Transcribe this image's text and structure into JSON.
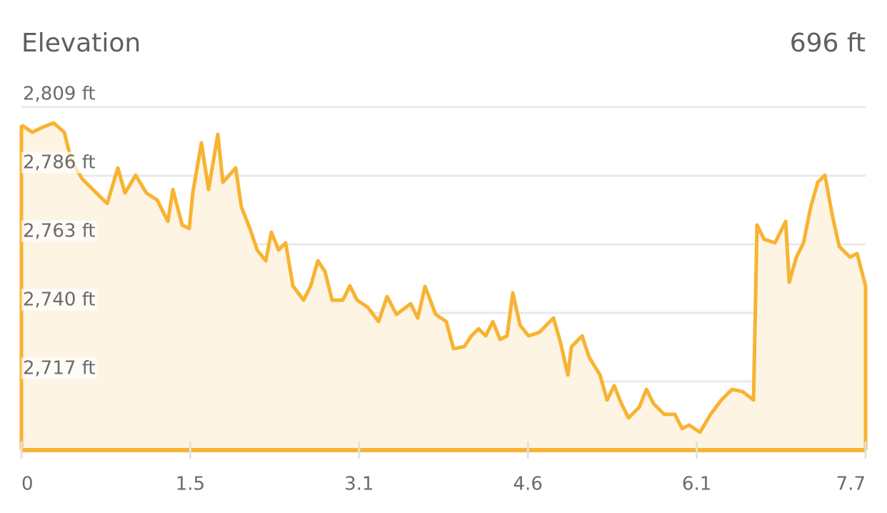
{
  "chart_data": {
    "type": "area",
    "title": "Elevation",
    "summary": "696 ft",
    "color": "#f8b332",
    "fill": "#fdf4e4",
    "grid": true,
    "xlim": [
      0,
      7.66
    ],
    "xticks": [
      0,
      {
        "value": 1.532,
        "label": "1.5"
      },
      {
        "value": 3.064,
        "label": "3.1"
      },
      {
        "value": 4.596,
        "label": "4.6"
      },
      {
        "value": 6.128,
        "label": "6.1"
      },
      {
        "value": 7.66,
        "label": "7.7"
      }
    ],
    "ylim": [
      2694,
      2809
    ],
    "yticks": [
      {
        "value": 2717,
        "label": "2,717 ft"
      },
      {
        "value": 2740,
        "label": "2,740 ft"
      },
      {
        "value": 2763,
        "label": "2,763 ft"
      },
      {
        "value": 2786,
        "label": "2,786 ft"
      },
      {
        "value": 2809,
        "label": "2,809 ft"
      }
    ],
    "x": [
      0,
      0.097,
      0.194,
      0.292,
      0.389,
      0.454,
      0.551,
      0.648,
      0.778,
      0.875,
      0.94,
      1.037,
      1.134,
      1.231,
      1.329,
      1.374,
      1.458,
      1.523,
      1.555,
      1.633,
      1.698,
      1.782,
      1.828,
      1.944,
      1.996,
      2.074,
      2.139,
      2.217,
      2.268,
      2.333,
      2.398,
      2.463,
      2.56,
      2.625,
      2.69,
      2.754,
      2.819,
      2.916,
      2.981,
      3.046,
      3.143,
      3.241,
      3.318,
      3.403,
      3.532,
      3.597,
      3.662,
      3.759,
      3.856,
      3.921,
      4.018,
      4.083,
      4.148,
      4.213,
      4.278,
      4.343,
      4.407,
      4.459,
      4.524,
      4.602,
      4.699,
      4.763,
      4.828,
      4.893,
      4.958,
      4.991,
      5.088,
      5.152,
      5.25,
      5.314,
      5.379,
      5.444,
      5.509,
      5.606,
      5.671,
      5.736,
      5.833,
      5.93,
      5.995,
      6.06,
      6.157,
      6.254,
      6.351,
      6.449,
      6.546,
      6.643,
      6.675,
      6.74,
      6.838,
      6.935,
      6.967,
      7.032,
      7.097,
      7.162,
      7.226,
      7.291,
      7.356,
      7.421,
      7.518,
      7.583,
      7.66
    ],
    "values": [
      2803.0,
      2800.6,
      2802.3,
      2803.7,
      2800.6,
      2791.0,
      2785.0,
      2781.4,
      2776.7,
      2788.6,
      2780.2,
      2786.2,
      2780.2,
      2777.9,
      2770.7,
      2781.4,
      2769.5,
      2768.3,
      2780.2,
      2797.0,
      2781.4,
      2799.9,
      2783.8,
      2788.6,
      2775.5,
      2768.3,
      2761.1,
      2757.5,
      2767.1,
      2761.1,
      2763.5,
      2749.1,
      2744.3,
      2749.1,
      2757.5,
      2753.9,
      2744.3,
      2744.3,
      2749.1,
      2744.3,
      2741.9,
      2737.1,
      2745.5,
      2739.5,
      2743.1,
      2738.3,
      2748.9,
      2739.5,
      2737.1,
      2728.0,
      2728.7,
      2732.3,
      2734.7,
      2732.3,
      2737.1,
      2731.1,
      2732.3,
      2746.7,
      2735.9,
      2732.3,
      2733.5,
      2735.9,
      2738.3,
      2729.9,
      2719.2,
      2728.7,
      2732.3,
      2725.1,
      2719.2,
      2710.8,
      2715.6,
      2709.6,
      2704.8,
      2708.4,
      2714.4,
      2709.6,
      2706.0,
      2706.0,
      2701.2,
      2702.4,
      2700.0,
      2706.0,
      2710.8,
      2714.4,
      2713.6,
      2710.8,
      2769.5,
      2764.7,
      2763.5,
      2770.7,
      2750.3,
      2758.7,
      2763.5,
      2775.5,
      2783.8,
      2786.2,
      2773.1,
      2762.3,
      2758.7,
      2759.9,
      2749.1
    ]
  }
}
